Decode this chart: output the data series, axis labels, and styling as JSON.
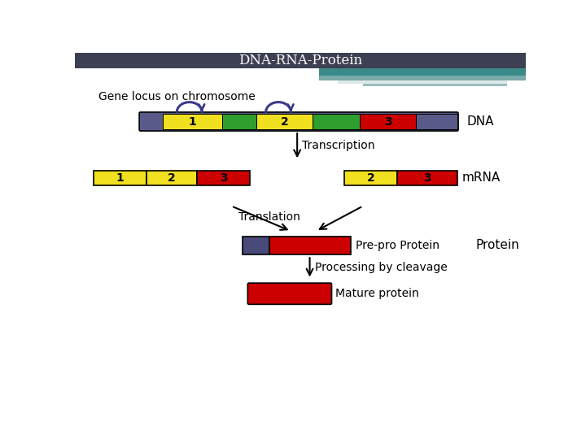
{
  "title": "DNA-RNA-Protein",
  "title_bg": "#3d3f52",
  "teal_bar1_color": "#3a8a8a",
  "teal_bar2_color": "#7aabab",
  "white_line_color": "#dde8e8",
  "dna_label": "DNA",
  "mrna_label": "mRNA",
  "protein_label": "Protein",
  "transcription_label": "Transcription",
  "translation_label": "Translation",
  "processing_label": "Processing by cleavage",
  "prepro_label": "Pre-pro Protein",
  "mature_label": "Mature protein",
  "gene_locus_label": "Gene locus on chromosome",
  "colors": {
    "yellow": "#f0e020",
    "green": "#2e9e2e",
    "red": "#cc0000",
    "purple": "#5a5a8a",
    "dark_purple": "#4a4a7a"
  },
  "title_fontsize": 12,
  "body_fontsize": 10,
  "label_fontsize": 11
}
